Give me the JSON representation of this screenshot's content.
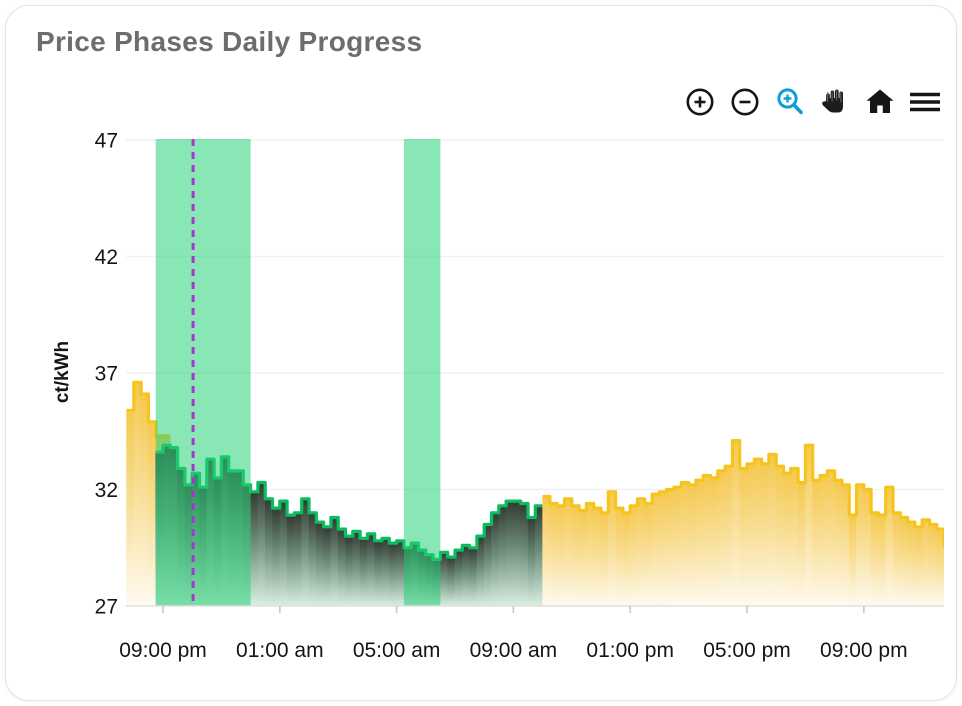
{
  "card": {
    "title": "Price Phases Daily Progress"
  },
  "toolbar": {
    "buttons": [
      {
        "name": "zoom-in",
        "icon": "circle-plus-icon",
        "color": "#151515",
        "active": false
      },
      {
        "name": "zoom-out",
        "icon": "circle-minus-icon",
        "color": "#151515",
        "active": false
      },
      {
        "name": "zoom-select",
        "icon": "magnifier-plus-icon",
        "color": "#0b9fd8",
        "active": true
      },
      {
        "name": "pan",
        "icon": "hand-icon",
        "color": "#1c1c1c",
        "active": false
      },
      {
        "name": "reset-view",
        "icon": "home-icon",
        "color": "#151515",
        "active": false
      },
      {
        "name": "menu",
        "icon": "hamburger-icon",
        "color": "#151515",
        "active": false
      }
    ]
  },
  "chart_data": {
    "type": "area",
    "subtype": "step-area-phases",
    "title": "Price Phases Daily Progress",
    "xlabel": "",
    "ylabel": "ct/kWh",
    "ylim": [
      27,
      47
    ],
    "y_ticks": [
      27,
      32,
      37,
      42,
      47
    ],
    "x_tick_labels": [
      "09:00 pm",
      "01:00 am",
      "05:00 am",
      "09:00 am",
      "01:00 pm",
      "05:00 pm",
      "09:00 pm"
    ],
    "x_tick_hours": [
      0,
      4,
      8,
      12,
      16,
      20,
      24
    ],
    "step_hours": 0.25,
    "grid": "horizontal-only",
    "legend": "none",
    "series": [
      {
        "name": "expensive-phase-evening",
        "color": "#f6c51d",
        "fill_stops": [
          "#f5c94e",
          "#f8dd92",
          "#fefaf0"
        ],
        "start_hour": -1.25,
        "values": [
          35.4,
          36.6,
          36.1,
          34.9,
          34.3,
          34.3
        ]
      },
      {
        "name": "cheap-phase-night",
        "color": "#0abe5f",
        "fill_stops": [
          "#333a33",
          "#6e8d7a",
          "#d9efe2"
        ],
        "start_hour": -0.25,
        "values": [
          33.6,
          33.9,
          33.8,
          32.9,
          32.2,
          32.7,
          32.1,
          33.3,
          32.5,
          33.4,
          32.8,
          32.8,
          32.2,
          31.9,
          32.3,
          31.6,
          31.2,
          31.5,
          30.9,
          31.0,
          31.6,
          31.0,
          30.6,
          30.4,
          30.8,
          30.3,
          30.0,
          30.2,
          29.9,
          30.1,
          29.8,
          29.9,
          29.7,
          29.8,
          29.5,
          29.7,
          29.4,
          29.2,
          29.0,
          29.3,
          29.1,
          29.4,
          29.6,
          29.5,
          30.0,
          30.5,
          31.0,
          31.3,
          31.5,
          31.5,
          31.4,
          30.8,
          31.3
        ]
      },
      {
        "name": "expensive-phase-day",
        "color": "#f6c51d",
        "fill_stops": [
          "#f5c94e",
          "#f8dd92",
          "#fefaf0"
        ],
        "start_hour": 13.0,
        "values": [
          31.7,
          31.4,
          31.3,
          31.6,
          31.3,
          31.1,
          31.4,
          31.2,
          31.0,
          31.9,
          31.2,
          31.0,
          31.3,
          31.6,
          31.4,
          31.8,
          31.9,
          32.0,
          32.1,
          32.3,
          32.2,
          32.4,
          32.6,
          32.5,
          32.8,
          33.0,
          34.1,
          32.9,
          33.1,
          33.3,
          33.1,
          33.5,
          33.0,
          32.7,
          32.9,
          32.3,
          33.9,
          32.4,
          32.6,
          32.8,
          32.4,
          32.2,
          30.9,
          32.2,
          32.0,
          31.0,
          30.9,
          32.1,
          31.0,
          30.8,
          30.6,
          30.4,
          30.7,
          30.5,
          30.3,
          29.6
        ]
      }
    ],
    "highlight_bands": [
      {
        "name": "cheap-window-1",
        "start_hour": -0.25,
        "end_hour": 3.0
      },
      {
        "name": "cheap-window-2",
        "start_hour": 8.25,
        "end_hour": 9.5
      }
    ],
    "band_color": "rgba(40,210,120,0.55)",
    "now_line": {
      "hour": 1.03,
      "color": "#a238cc",
      "style": "dashed"
    },
    "grid_color": "#f1f1f1",
    "axis_line_color": "#e0e0de",
    "tick_color": "#c8c8c8",
    "tick_label_color": "#141414"
  }
}
